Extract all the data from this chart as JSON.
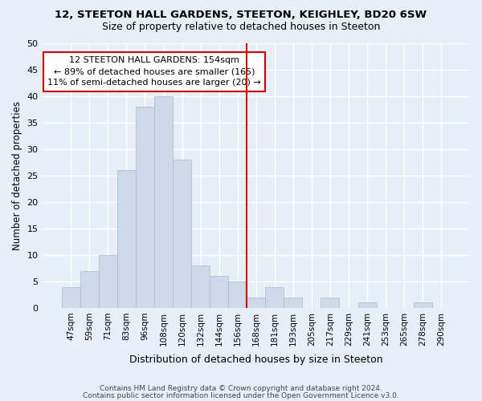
{
  "title1": "12, STEETON HALL GARDENS, STEETON, KEIGHLEY, BD20 6SW",
  "title2": "Size of property relative to detached houses in Steeton",
  "xlabel": "Distribution of detached houses by size in Steeton",
  "ylabel": "Number of detached properties",
  "bar_labels": [
    "47sqm",
    "59sqm",
    "71sqm",
    "83sqm",
    "96sqm",
    "108sqm",
    "120sqm",
    "132sqm",
    "144sqm",
    "156sqm",
    "168sqm",
    "181sqm",
    "193sqm",
    "205sqm",
    "217sqm",
    "229sqm",
    "241sqm",
    "253sqm",
    "265sqm",
    "278sqm",
    "290sqm"
  ],
  "bar_values": [
    4,
    7,
    10,
    26,
    38,
    40,
    28,
    8,
    6,
    5,
    2,
    4,
    2,
    0,
    2,
    0,
    1,
    0,
    0,
    1,
    0
  ],
  "bar_color": "#ccd9ea",
  "bar_edgecolor": "#aabbcc",
  "vline_x": 9.5,
  "vline_color": "#cc0000",
  "annotation_text": "12 STEETON HALL GARDENS: 154sqm\n← 89% of detached houses are smaller (165)\n11% of semi-detached houses are larger (20) →",
  "annotation_box_color": "#cc0000",
  "annotation_fill": "#ffffff",
  "ylim": [
    0,
    50
  ],
  "yticks": [
    0,
    5,
    10,
    15,
    20,
    25,
    30,
    35,
    40,
    45,
    50
  ],
  "footer1": "Contains HM Land Registry data © Crown copyright and database right 2024.",
  "footer2": "Contains public sector information licensed under the Open Government Licence v3.0.",
  "bg_color": "#e8eef5",
  "grid_color": "#ffffff"
}
